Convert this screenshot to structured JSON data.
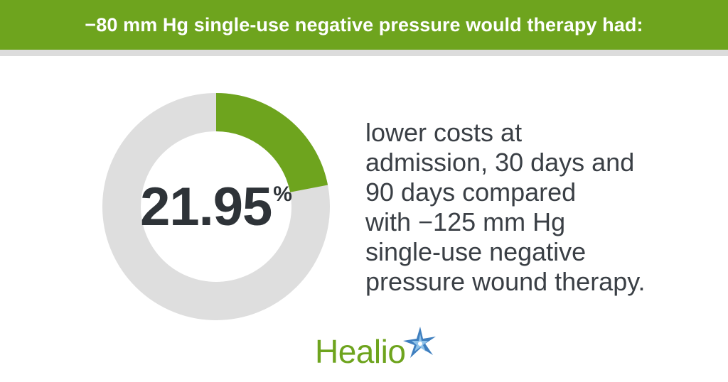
{
  "header": {
    "title": "−80 mm Hg single-use negative pressure would therapy had:"
  },
  "chart_data": {
    "type": "pie",
    "variant": "donut",
    "value": 21.95,
    "value_label": "21.95",
    "unit": "%",
    "max": 100,
    "colors": {
      "fill": "#6ea41e",
      "track": "#dedede"
    }
  },
  "description": {
    "lines": [
      "lower costs at",
      "admission, 30 days and",
      "90 days compared",
      "with −125 mm Hg",
      "single-use negative",
      "pressure wound therapy."
    ]
  },
  "logo": {
    "text": "Healio",
    "icon": "star-icon"
  },
  "colors": {
    "brand_green": "#6ea41e",
    "text_dark": "#2e3338",
    "star_blue": "#3f7fbf"
  }
}
